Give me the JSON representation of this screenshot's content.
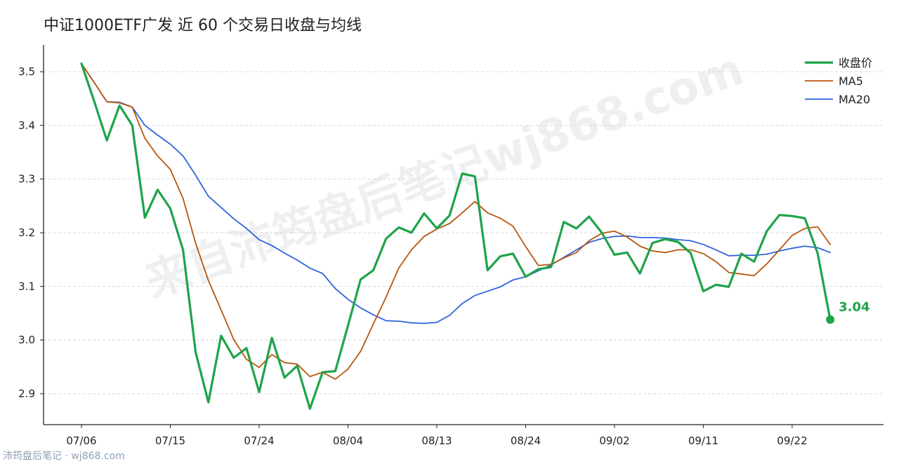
{
  "page": {
    "title": "中证1000ETF广发 近 60 个交易日收盘与均线",
    "footer": "沛筠盘后笔记 · wj868.com",
    "watermark": "来自沛筠盘后笔记wj868.com"
  },
  "colors": {
    "close": "#1fa34a",
    "ma5": "#b8560f",
    "ma20": "#2f65dc",
    "grid": "#d9d9d9",
    "axis": "#222222"
  },
  "chart_data": {
    "type": "line",
    "title": "中证1000ETF广发 近 60 个交易日收盘与均线",
    "xlabel": "",
    "ylabel": "",
    "ylim": [
      2.84,
      3.55
    ],
    "yticks": [
      2.9,
      3.0,
      3.1,
      3.2,
      3.3,
      3.4,
      3.5
    ],
    "ytick_labels": [
      "2.9",
      "3.0",
      "3.1",
      "3.2",
      "3.3",
      "3.4",
      "3.5"
    ],
    "xtick_labels": [
      "07/06",
      "07/15",
      "07/24",
      "08/04",
      "08/13",
      "08/24",
      "09/02",
      "09/11",
      "09/22"
    ],
    "xtick_index": [
      0,
      7,
      14,
      21,
      28,
      35,
      42,
      49,
      56
    ],
    "n_points": 60,
    "grid": "horizontal dashed",
    "legend_position": "top-right",
    "last_label": "3.04",
    "series": [
      {
        "name": "收盘价",
        "values": [
          3.515,
          3.445,
          3.372,
          3.437,
          3.4,
          3.228,
          3.28,
          3.245,
          3.168,
          2.977,
          2.884,
          3.008,
          2.967,
          2.985,
          2.903,
          3.004,
          2.93,
          2.952,
          2.872,
          2.94,
          2.942,
          3.027,
          3.113,
          3.13,
          3.189,
          3.21,
          3.2,
          3.236,
          3.208,
          3.232,
          3.31,
          3.305,
          3.13,
          3.156,
          3.161,
          3.118,
          3.132,
          3.136,
          3.22,
          3.208,
          3.23,
          3.2,
          3.159,
          3.163,
          3.124,
          3.181,
          3.188,
          3.183,
          3.162,
          3.091,
          3.103,
          3.099,
          3.161,
          3.146,
          3.203,
          3.233,
          3.231,
          3.227,
          3.162,
          3.038
        ]
      },
      {
        "name": "MA5",
        "values": [
          3.515,
          3.48,
          3.444,
          3.442,
          3.434,
          3.376,
          3.343,
          3.318,
          3.264,
          3.18,
          3.111,
          3.056,
          3.001,
          2.964,
          2.949,
          2.973,
          2.958,
          2.955,
          2.932,
          2.94,
          2.927,
          2.946,
          2.979,
          3.03,
          3.08,
          3.134,
          3.168,
          3.193,
          3.207,
          3.217,
          3.237,
          3.258,
          3.237,
          3.227,
          3.212,
          3.174,
          3.139,
          3.141,
          3.153,
          3.163,
          3.185,
          3.199,
          3.203,
          3.192,
          3.175,
          3.166,
          3.163,
          3.168,
          3.168,
          3.161,
          3.146,
          3.126,
          3.123,
          3.12,
          3.142,
          3.168,
          3.195,
          3.208,
          3.211,
          3.178
        ]
      },
      {
        "name": "MA20",
        "values": [
          3.515,
          3.48,
          3.444,
          3.443,
          3.434,
          3.4,
          3.382,
          3.365,
          3.343,
          3.307,
          3.268,
          3.247,
          3.226,
          3.208,
          3.187,
          3.176,
          3.162,
          3.149,
          3.134,
          3.124,
          3.096,
          3.076,
          3.06,
          3.047,
          3.036,
          3.035,
          3.032,
          3.031,
          3.033,
          3.046,
          3.068,
          3.083,
          3.091,
          3.099,
          3.112,
          3.118,
          3.129,
          3.14,
          3.154,
          3.168,
          3.182,
          3.189,
          3.193,
          3.194,
          3.191,
          3.191,
          3.19,
          3.187,
          3.185,
          3.178,
          3.168,
          3.157,
          3.158,
          3.158,
          3.16,
          3.166,
          3.171,
          3.175,
          3.172,
          3.163
        ]
      }
    ]
  }
}
